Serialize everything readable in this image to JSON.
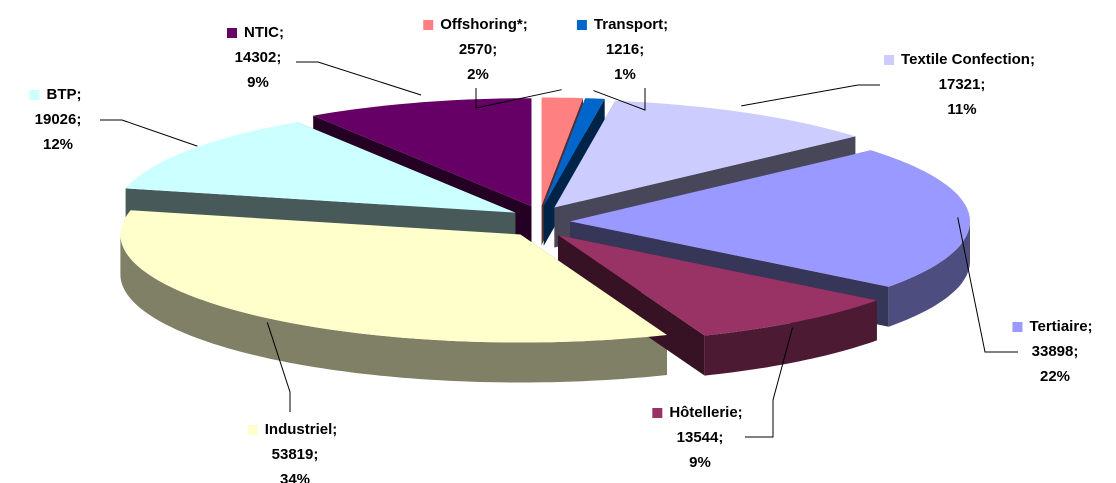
{
  "chart_data": {
    "type": "pie",
    "categories": [
      "Offshoring*",
      "Transport",
      "Textile Confection",
      "Tertiaire",
      "Hôtellerie",
      "Industriel",
      "BTP",
      "NTIC"
    ],
    "values": [
      2570,
      1216,
      17321,
      33898,
      13544,
      53819,
      19026,
      14302
    ],
    "percent_labels": [
      "2%",
      "1%",
      "11%",
      "22%",
      "9%",
      "34%",
      "12%",
      "9%"
    ],
    "label_separator": ";",
    "colors": [
      "#ff8080",
      "#0066cc",
      "#ccccff",
      "#9999ff",
      "#993366",
      "#ffffcc",
      "#ccffff",
      "#660066"
    ]
  }
}
